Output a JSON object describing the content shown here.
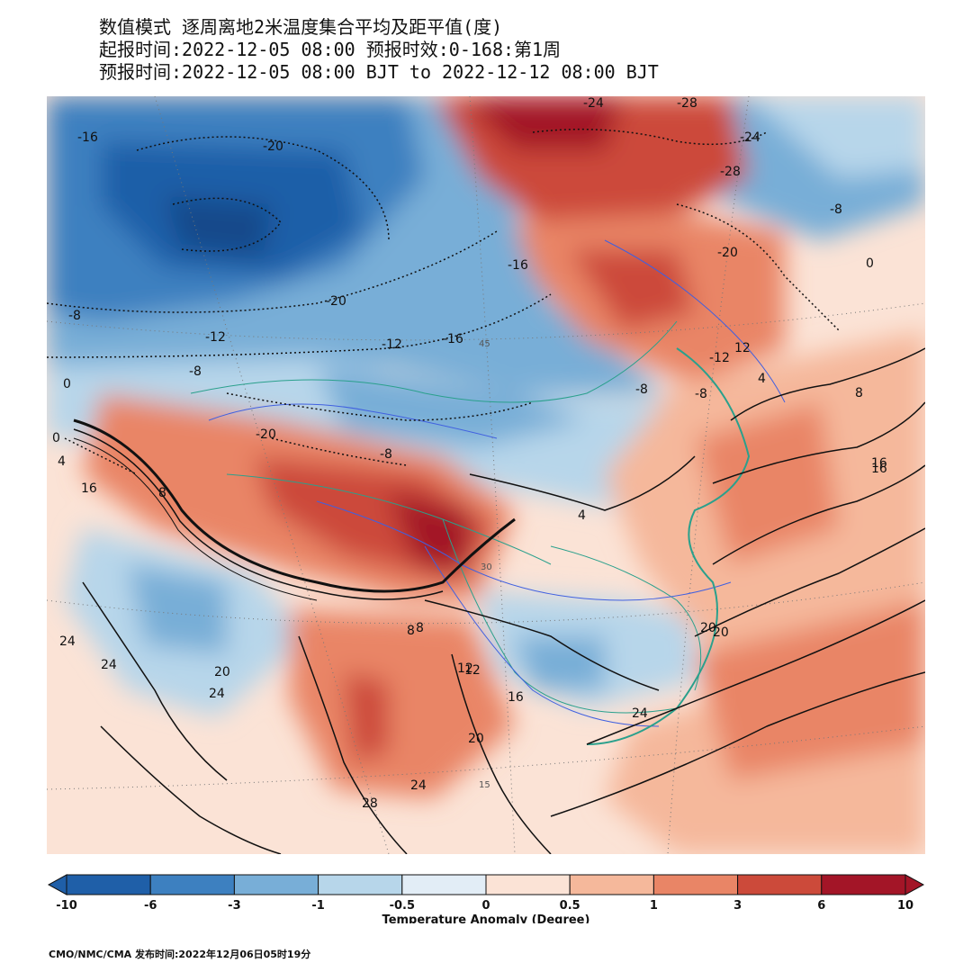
{
  "header": {
    "line1": "数值模式 逐周离地2米温度集合平均及距平值(度)",
    "line2": "起报时间:2022-12-05 08:00 预报时效:0-168:第1周",
    "line3": "预报时间:2022-12-05 08:00 BJT to 2022-12-12 08:00 BJT"
  },
  "colorbar": {
    "title": "Temperature Anomaly (Degree)",
    "ticks": [
      "-10",
      "-6",
      "-3",
      "-1",
      "-0.5",
      "0",
      "0.5",
      "1",
      "3",
      "6",
      "10"
    ],
    "colors": [
      "#1f5fa8",
      "#3d80c0",
      "#78aed7",
      "#b7d6ea",
      "#e2edf6",
      "#fbe3d6",
      "#f5b89b",
      "#e98566",
      "#cc4a3a",
      "#a31527"
    ]
  },
  "map": {
    "contour_labels": [
      "-16",
      "-20",
      "-24",
      "-28",
      "-24",
      "-28",
      "-8",
      "0",
      "-20",
      "-16",
      "-16",
      "-12",
      "-20",
      "-12",
      "-8",
      "-8",
      "-12",
      "-20",
      "-8",
      "-8",
      "0",
      "4",
      "8",
      "12",
      "16",
      "16",
      "4",
      "-8",
      "0",
      "4",
      "8",
      "8",
      "12",
      "16",
      "20",
      "24",
      "20",
      "24",
      "24",
      "20",
      "24",
      "28",
      "16",
      "20",
      "12",
      "24",
      "8"
    ],
    "grid_labels": [
      "45",
      "15",
      "30"
    ]
  },
  "footer": {
    "text": "CMO/NMC/CMA 发布时间:2022年12月06日05时19分"
  }
}
